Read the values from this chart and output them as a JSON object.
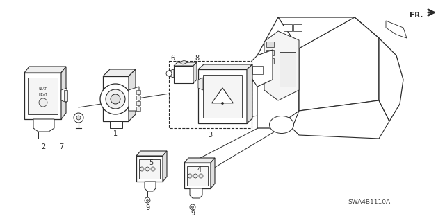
{
  "bg_color": "#ffffff",
  "line_color": "#2a2a2a",
  "fig_width": 6.4,
  "fig_height": 3.19,
  "dpi": 100,
  "diagram_code": "SWA4B1110A",
  "fr_label": "FR."
}
